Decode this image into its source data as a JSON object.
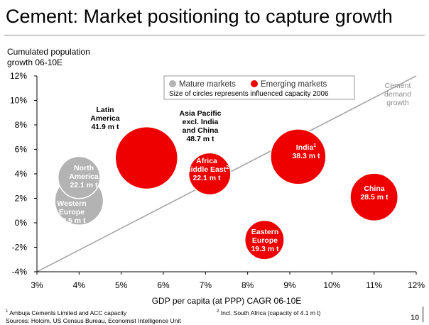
{
  "page": {
    "title": "Cement: Market positioning to capture growth",
    "y_axis_label_line1": "Cumulated population",
    "y_axis_label_line2": "growth 06-10E",
    "x_axis_label": "GDP per capita (at PPP) CAGR 06-10E",
    "footnote1_mark": "1",
    "footnote1_text": " Ambuja Cements Limited and ACC capacity",
    "footnote2_mark": "2",
    "footnote2_text": " Incl. South Africa (capacity of 4.1 m t)",
    "sources": "Sources: Holcim, US Census Bureau, Economist Intelligence Unit",
    "page_number": "10"
  },
  "legend": {
    "mature_label": "Mature markets",
    "emerging_label": "Emerging markets",
    "note": "Size of circles represents influenced capacity 2006"
  },
  "colors": {
    "mature": "#b3b3b3",
    "emerging": "#ee0000",
    "diagonal": "#a6a6a6",
    "diagonal_label": "#8c8c8c"
  },
  "chart_data": {
    "type": "scatter",
    "xlabel": "GDP per capita (at PPP) CAGR 06-10E",
    "ylabel": "Cumulated population growth 06-10E",
    "xlim": [
      3,
      12
    ],
    "ylim": [
      -4,
      12
    ],
    "x_ticks": [
      "3%",
      "4%",
      "5%",
      "6%",
      "7%",
      "8%",
      "9%",
      "10%",
      "11%",
      "12%"
    ],
    "y_ticks": [
      "12%",
      "10%",
      "8%",
      "6%",
      "4%",
      "2%",
      "0%",
      "-2%",
      "-4%"
    ],
    "grid": false,
    "legend_position": "top",
    "size_encoding": "influenced capacity 2006 (m t)",
    "reference_line": {
      "label": [
        "Cement",
        "demand",
        "growth"
      ],
      "from": [
        3,
        -4
      ],
      "to": [
        12,
        12
      ]
    },
    "points": [
      {
        "name_lines": [
          "Western",
          "Europe",
          "29.5 m t"
        ],
        "group": "mature",
        "x": 4.0,
        "y": 1.8,
        "capacity": 29.5
      },
      {
        "name_lines": [
          "North",
          "America",
          "22.1 m t"
        ],
        "group": "mature",
        "x": 4.0,
        "y": 3.7,
        "capacity": 22.1
      },
      {
        "name_lines": [
          "Latin",
          "America",
          "41.9 m t"
        ],
        "group": "emerging",
        "x": 5.6,
        "y": 5.2,
        "capacity": 41.9
      },
      {
        "name_lines": [
          "Asia Pacific",
          "excl. India",
          "and China",
          "48.7 m t"
        ],
        "group": "emerging",
        "x": 5.6,
        "y": 5.3,
        "capacity": 48.7
      },
      {
        "name_lines": [
          "Africa",
          "Middle East",
          "22.1 m t"
        ],
        "group": "emerging",
        "x": 7.1,
        "y": 4.0,
        "capacity": 22.1,
        "sup": "2"
      },
      {
        "name_lines": [
          "Eastern",
          "Europe",
          "19.3 m t"
        ],
        "group": "emerging",
        "x": 8.4,
        "y": -1.4,
        "capacity": 19.3
      },
      {
        "name_lines": [
          "India",
          "38.3 m t"
        ],
        "group": "emerging",
        "x": 9.2,
        "y": 5.4,
        "capacity": 38.3,
        "sup": "1"
      },
      {
        "name_lines": [
          "China",
          "28.5 m t"
        ],
        "group": "emerging",
        "x": 11.0,
        "y": 2.1,
        "capacity": 28.5
      }
    ]
  }
}
